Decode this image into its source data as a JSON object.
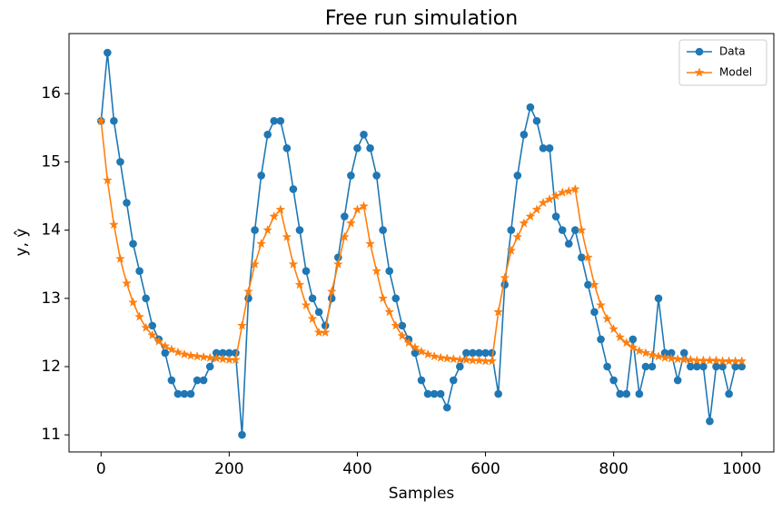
{
  "chart_data": {
    "type": "line",
    "title": "Free run simulation",
    "x_label": "Samples",
    "y_label": "y, ŷ",
    "x": [
      0,
      10,
      20,
      30,
      40,
      50,
      60,
      70,
      80,
      90,
      100,
      110,
      120,
      130,
      140,
      150,
      160,
      170,
      180,
      190,
      200,
      210,
      220,
      230,
      240,
      250,
      260,
      270,
      280,
      290,
      300,
      310,
      320,
      330,
      340,
      350,
      360,
      370,
      380,
      390,
      400,
      410,
      420,
      430,
      440,
      450,
      460,
      470,
      480,
      490,
      500,
      510,
      520,
      530,
      540,
      550,
      560,
      570,
      580,
      590,
      600,
      610,
      620,
      630,
      640,
      650,
      660,
      670,
      680,
      690,
      700,
      710,
      720,
      730,
      740,
      750,
      760,
      770,
      780,
      790,
      800,
      810,
      820,
      830,
      840,
      850,
      860,
      870,
      880,
      890,
      900,
      910,
      920,
      930,
      940,
      950,
      960,
      970,
      980,
      990,
      1000
    ],
    "series": [
      {
        "name": "Data",
        "color": "#1f77b4",
        "marker": "circle",
        "values": [
          15.6,
          16.6,
          15.6,
          15.0,
          14.4,
          13.8,
          13.4,
          13.0,
          12.6,
          12.4,
          12.2,
          11.8,
          11.6,
          11.6,
          11.6,
          11.8,
          11.8,
          12.0,
          12.2,
          12.2,
          12.2,
          12.2,
          11.0,
          13.0,
          14.0,
          14.8,
          15.4,
          15.6,
          15.6,
          15.2,
          14.6,
          14.0,
          13.4,
          13.0,
          12.8,
          12.6,
          13.0,
          13.6,
          14.2,
          14.8,
          15.2,
          15.4,
          15.2,
          14.8,
          14.0,
          13.4,
          13.0,
          12.6,
          12.4,
          12.2,
          11.8,
          11.6,
          11.6,
          11.6,
          11.4,
          11.8,
          12.0,
          12.2,
          12.2,
          12.2,
          12.2,
          12.2,
          11.6,
          13.2,
          14.0,
          14.8,
          15.4,
          15.8,
          15.6,
          15.2,
          15.2,
          14.2,
          14.0,
          13.8,
          14.0,
          13.6,
          13.2,
          12.8,
          12.4,
          12.0,
          11.8,
          11.6,
          11.6,
          12.4,
          11.6,
          12.0,
          12.0,
          13.0,
          12.2,
          12.2,
          11.8,
          12.2,
          12.0,
          12.0,
          12.0,
          11.2,
          12.0,
          12.0,
          11.6,
          12.0,
          12.0
        ]
      },
      {
        "name": "Model",
        "color": "#ff7f0e",
        "marker": "star",
        "values": [
          15.6,
          14.73,
          14.08,
          13.58,
          13.22,
          12.94,
          12.73,
          12.57,
          12.46,
          12.37,
          12.3,
          12.25,
          12.21,
          12.18,
          12.16,
          12.15,
          12.14,
          12.13,
          12.12,
          12.11,
          12.1,
          12.1,
          12.6,
          13.1,
          13.5,
          13.8,
          14.0,
          14.2,
          14.3,
          13.9,
          13.5,
          13.2,
          12.9,
          12.7,
          12.5,
          12.5,
          13.1,
          13.5,
          13.9,
          14.1,
          14.3,
          14.35,
          13.8,
          13.4,
          13.0,
          12.8,
          12.6,
          12.45,
          12.35,
          12.28,
          12.22,
          12.18,
          12.15,
          12.13,
          12.12,
          12.11,
          12.1,
          12.1,
          12.09,
          12.09,
          12.08,
          12.08,
          12.8,
          13.3,
          13.7,
          13.9,
          14.1,
          14.2,
          14.3,
          14.4,
          14.45,
          14.5,
          14.55,
          14.57,
          14.6,
          14.0,
          13.6,
          13.2,
          12.9,
          12.7,
          12.55,
          12.43,
          12.35,
          12.28,
          12.23,
          12.2,
          12.17,
          12.15,
          12.13,
          12.12,
          12.11,
          12.1,
          12.1,
          12.09,
          12.09,
          12.09,
          12.09,
          12.08,
          12.08,
          12.08,
          12.08
        ]
      }
    ],
    "xlim": [
      -50,
      1050
    ],
    "xticks": [
      0,
      200,
      400,
      600,
      800,
      1000
    ],
    "ylim": [
      10.75,
      16.88
    ],
    "yticks": [
      11,
      12,
      13,
      14,
      15,
      16
    ],
    "legend": "upper right",
    "grid": false
  }
}
